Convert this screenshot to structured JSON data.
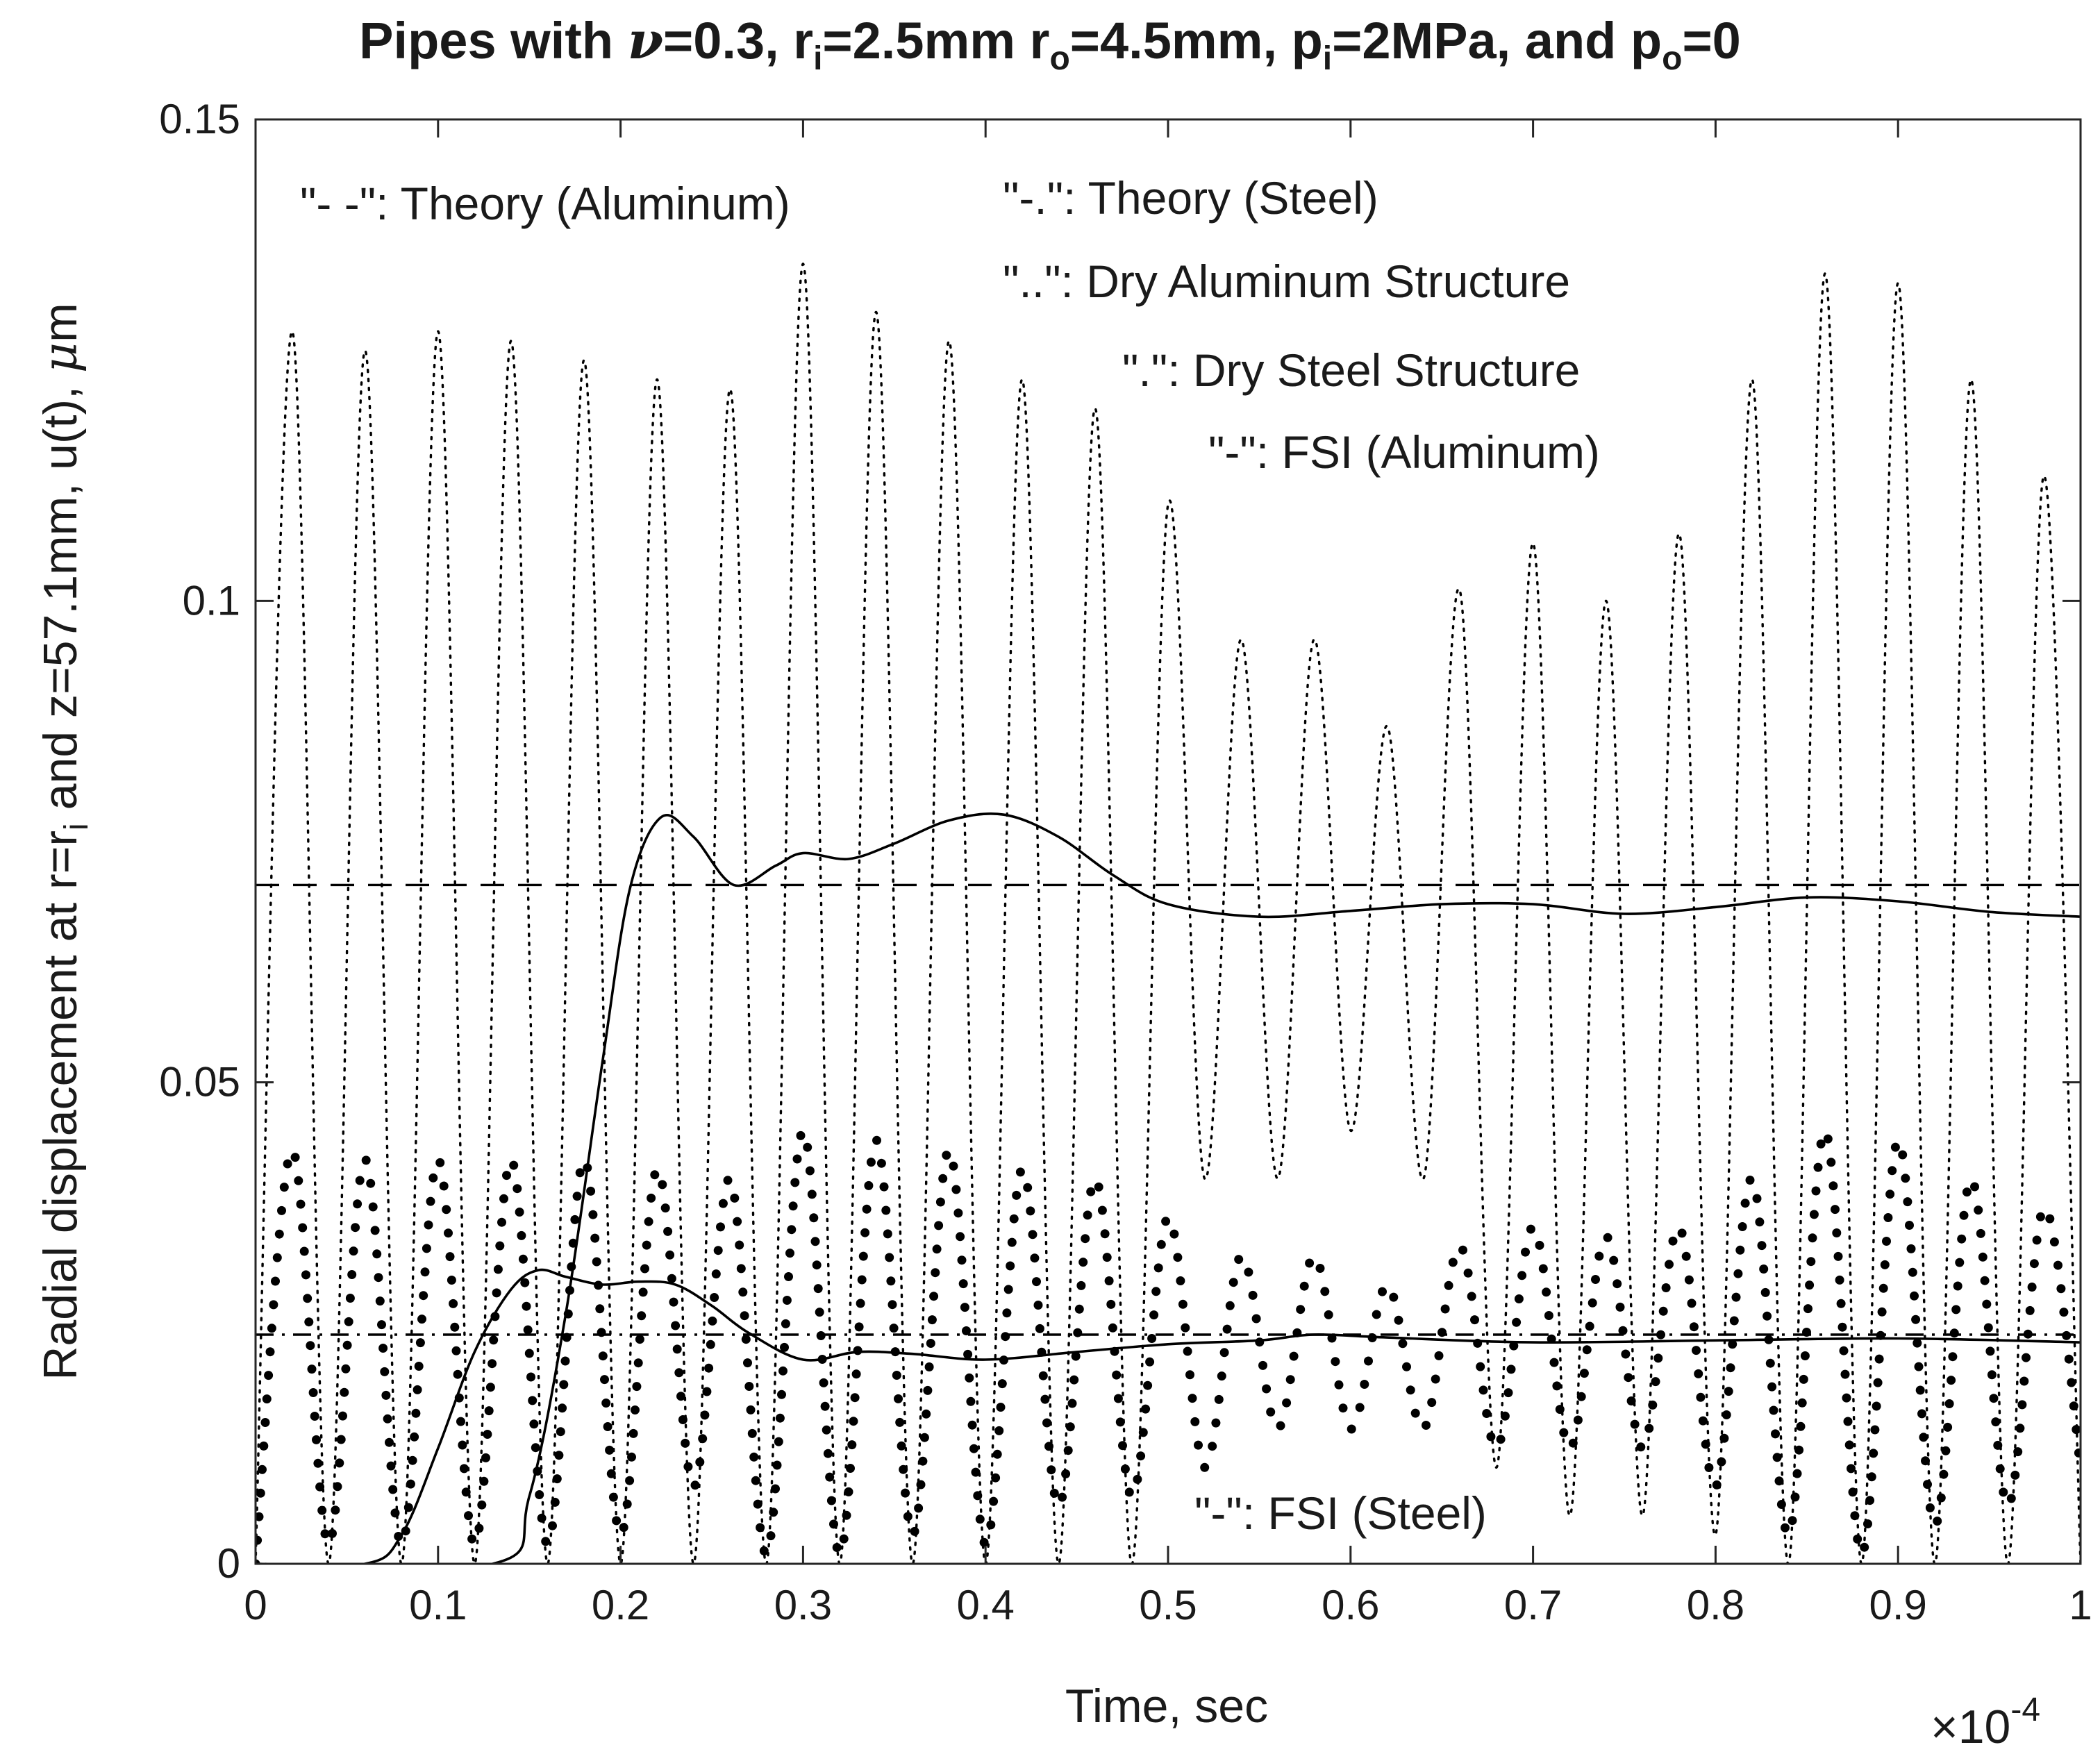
{
  "chart_data": {
    "type": "line",
    "title": {
      "prefix": "Pipes with ",
      "nu_symbol": "ν",
      "nu_value": "=0.3, r",
      "ri_sub": "i",
      "ri_value": "=2.5mm r",
      "ro_sub": "o",
      "ro_value": "=4.5mm, p",
      "pi_sub": "i",
      "pi_value": "=2MPa, and p",
      "po_sub": "o",
      "po_value": "=0"
    },
    "xlabel": "Time, sec",
    "x_multiplier": {
      "times": "×10",
      "exponent": "-4"
    },
    "ylabel": {
      "main": "Radial displacement at r=r",
      "sub": "i",
      "rest": " and z=57.1mm, u(t), ",
      "mu": "μ",
      "unit": "m"
    },
    "xlim": [
      0,
      1
    ],
    "ylim": [
      0,
      0.15
    ],
    "xticks": [
      "0",
      "0.1",
      "0.2",
      "0.3",
      "0.4",
      "0.5",
      "0.6",
      "0.7",
      "0.8",
      "0.9",
      "1"
    ],
    "yticks": [
      "0",
      "0.05",
      "0.1",
      "0.15"
    ],
    "legend": [
      "\"- -\": Theory (Aluminum)",
      "\"-.\": Theory (Steel)",
      "\"..\": Dry Aluminum Structure",
      "\".\": Dry Steel Structure",
      "\"-\": FSI (Aluminum)",
      "\"-\": FSI (Steel)"
    ],
    "series": [
      {
        "name": "Theory (Aluminum)",
        "style": "dashed",
        "x": [
          0,
          1
        ],
        "y": [
          0.0705,
          0.0705
        ]
      },
      {
        "name": "Theory (Steel)",
        "style": "dashdot",
        "x": [
          0,
          1
        ],
        "y": [
          0.0238,
          0.0238
        ]
      },
      {
        "name": "FSI (Aluminum)",
        "style": "solid",
        "x": [
          0,
          0.13,
          0.15,
          0.17,
          0.19,
          0.205,
          0.222,
          0.24,
          0.262,
          0.285,
          0.3,
          0.325,
          0.35,
          0.38,
          0.41,
          0.44,
          0.47,
          0.5,
          0.55,
          0.6,
          0.65,
          0.7,
          0.75,
          0.8,
          0.85,
          0.9,
          0.95,
          1.0
        ],
        "y": [
          0,
          0,
          0.007,
          0.026,
          0.052,
          0.07,
          0.0775,
          0.0755,
          0.0705,
          0.0725,
          0.0738,
          0.0732,
          0.0748,
          0.0772,
          0.0778,
          0.0755,
          0.0715,
          0.0685,
          0.0672,
          0.0678,
          0.0685,
          0.0685,
          0.0675,
          0.0682,
          0.0692,
          0.0688,
          0.0677,
          0.0672
        ]
      },
      {
        "name": "FSI (Steel)",
        "style": "solid",
        "x": [
          0,
          0.06,
          0.08,
          0.1,
          0.12,
          0.14,
          0.155,
          0.17,
          0.19,
          0.21,
          0.23,
          0.25,
          0.27,
          0.3,
          0.33,
          0.36,
          0.4,
          0.45,
          0.5,
          0.55,
          0.58,
          0.62,
          0.7,
          0.8,
          0.9,
          1.0
        ],
        "y": [
          0,
          0,
          0.003,
          0.012,
          0.022,
          0.0285,
          0.0305,
          0.0298,
          0.029,
          0.0293,
          0.029,
          0.0268,
          0.024,
          0.0212,
          0.022,
          0.0218,
          0.0212,
          0.022,
          0.0228,
          0.0232,
          0.0238,
          0.0235,
          0.023,
          0.0232,
          0.0234,
          0.023
        ]
      },
      {
        "name": "Dry Aluminum Structure",
        "style": "dotted",
        "x": [
          0,
          0.02,
          0.04,
          0.06,
          0.08,
          0.1,
          0.12,
          0.14,
          0.16,
          0.18,
          0.2,
          0.22,
          0.24,
          0.26,
          0.28,
          0.3,
          0.32,
          0.34,
          0.36,
          0.38,
          0.4,
          0.42,
          0.44,
          0.46,
          0.48,
          0.5,
          0.52,
          0.54,
          0.56,
          0.58,
          0.6,
          0.62,
          0.64,
          0.66,
          0.68,
          0.7,
          0.72,
          0.74,
          0.76,
          0.78,
          0.8,
          0.82,
          0.84,
          0.86,
          0.88,
          0.9,
          0.92,
          0.94,
          0.96,
          0.98,
          1.0
        ],
        "y": [
          0,
          0.128,
          0,
          0.126,
          0,
          0.128,
          0,
          0.127,
          0,
          0.125,
          0,
          0.123,
          0,
          0.122,
          0,
          0.135,
          0,
          0.13,
          0,
          0.127,
          0,
          0.123,
          0,
          0.12,
          0,
          0.11,
          0.04,
          0.096,
          0.04,
          0.096,
          0.045,
          0.087,
          0.04,
          0.101,
          0.01,
          0.106,
          0.005,
          0.1,
          0.005,
          0.107,
          0.003,
          0.123,
          0,
          0.134,
          0,
          0.133,
          0,
          0.123,
          0,
          0.113,
          0
        ]
      },
      {
        "name": "Dry Steel Structure",
        "style": "markers",
        "x": [
          0,
          0.02,
          0.04,
          0.06,
          0.08,
          0.1,
          0.12,
          0.14,
          0.16,
          0.18,
          0.2,
          0.22,
          0.24,
          0.26,
          0.28,
          0.3,
          0.32,
          0.34,
          0.36,
          0.38,
          0.4,
          0.42,
          0.44,
          0.46,
          0.48,
          0.5,
          0.52,
          0.54,
          0.56,
          0.58,
          0.6,
          0.62,
          0.64,
          0.66,
          0.68,
          0.7,
          0.72,
          0.74,
          0.76,
          0.78,
          0.8,
          0.82,
          0.84,
          0.86,
          0.88,
          0.9,
          0.92,
          0.94,
          0.96,
          0.98,
          1.0
        ],
        "y": [
          0,
          0.043,
          0.002,
          0.042,
          0.002,
          0.042,
          0.002,
          0.042,
          0.002,
          0.042,
          0.003,
          0.041,
          0.008,
          0.04,
          0.001,
          0.045,
          0.001,
          0.044,
          0.003,
          0.043,
          0.002,
          0.041,
          0.006,
          0.04,
          0.007,
          0.036,
          0.01,
          0.032,
          0.014,
          0.032,
          0.014,
          0.029,
          0.014,
          0.033,
          0.012,
          0.035,
          0.012,
          0.034,
          0.012,
          0.035,
          0.008,
          0.04,
          0.003,
          0.045,
          0.001,
          0.044,
          0.004,
          0.04,
          0.006,
          0.037,
          0.01
        ]
      }
    ]
  }
}
